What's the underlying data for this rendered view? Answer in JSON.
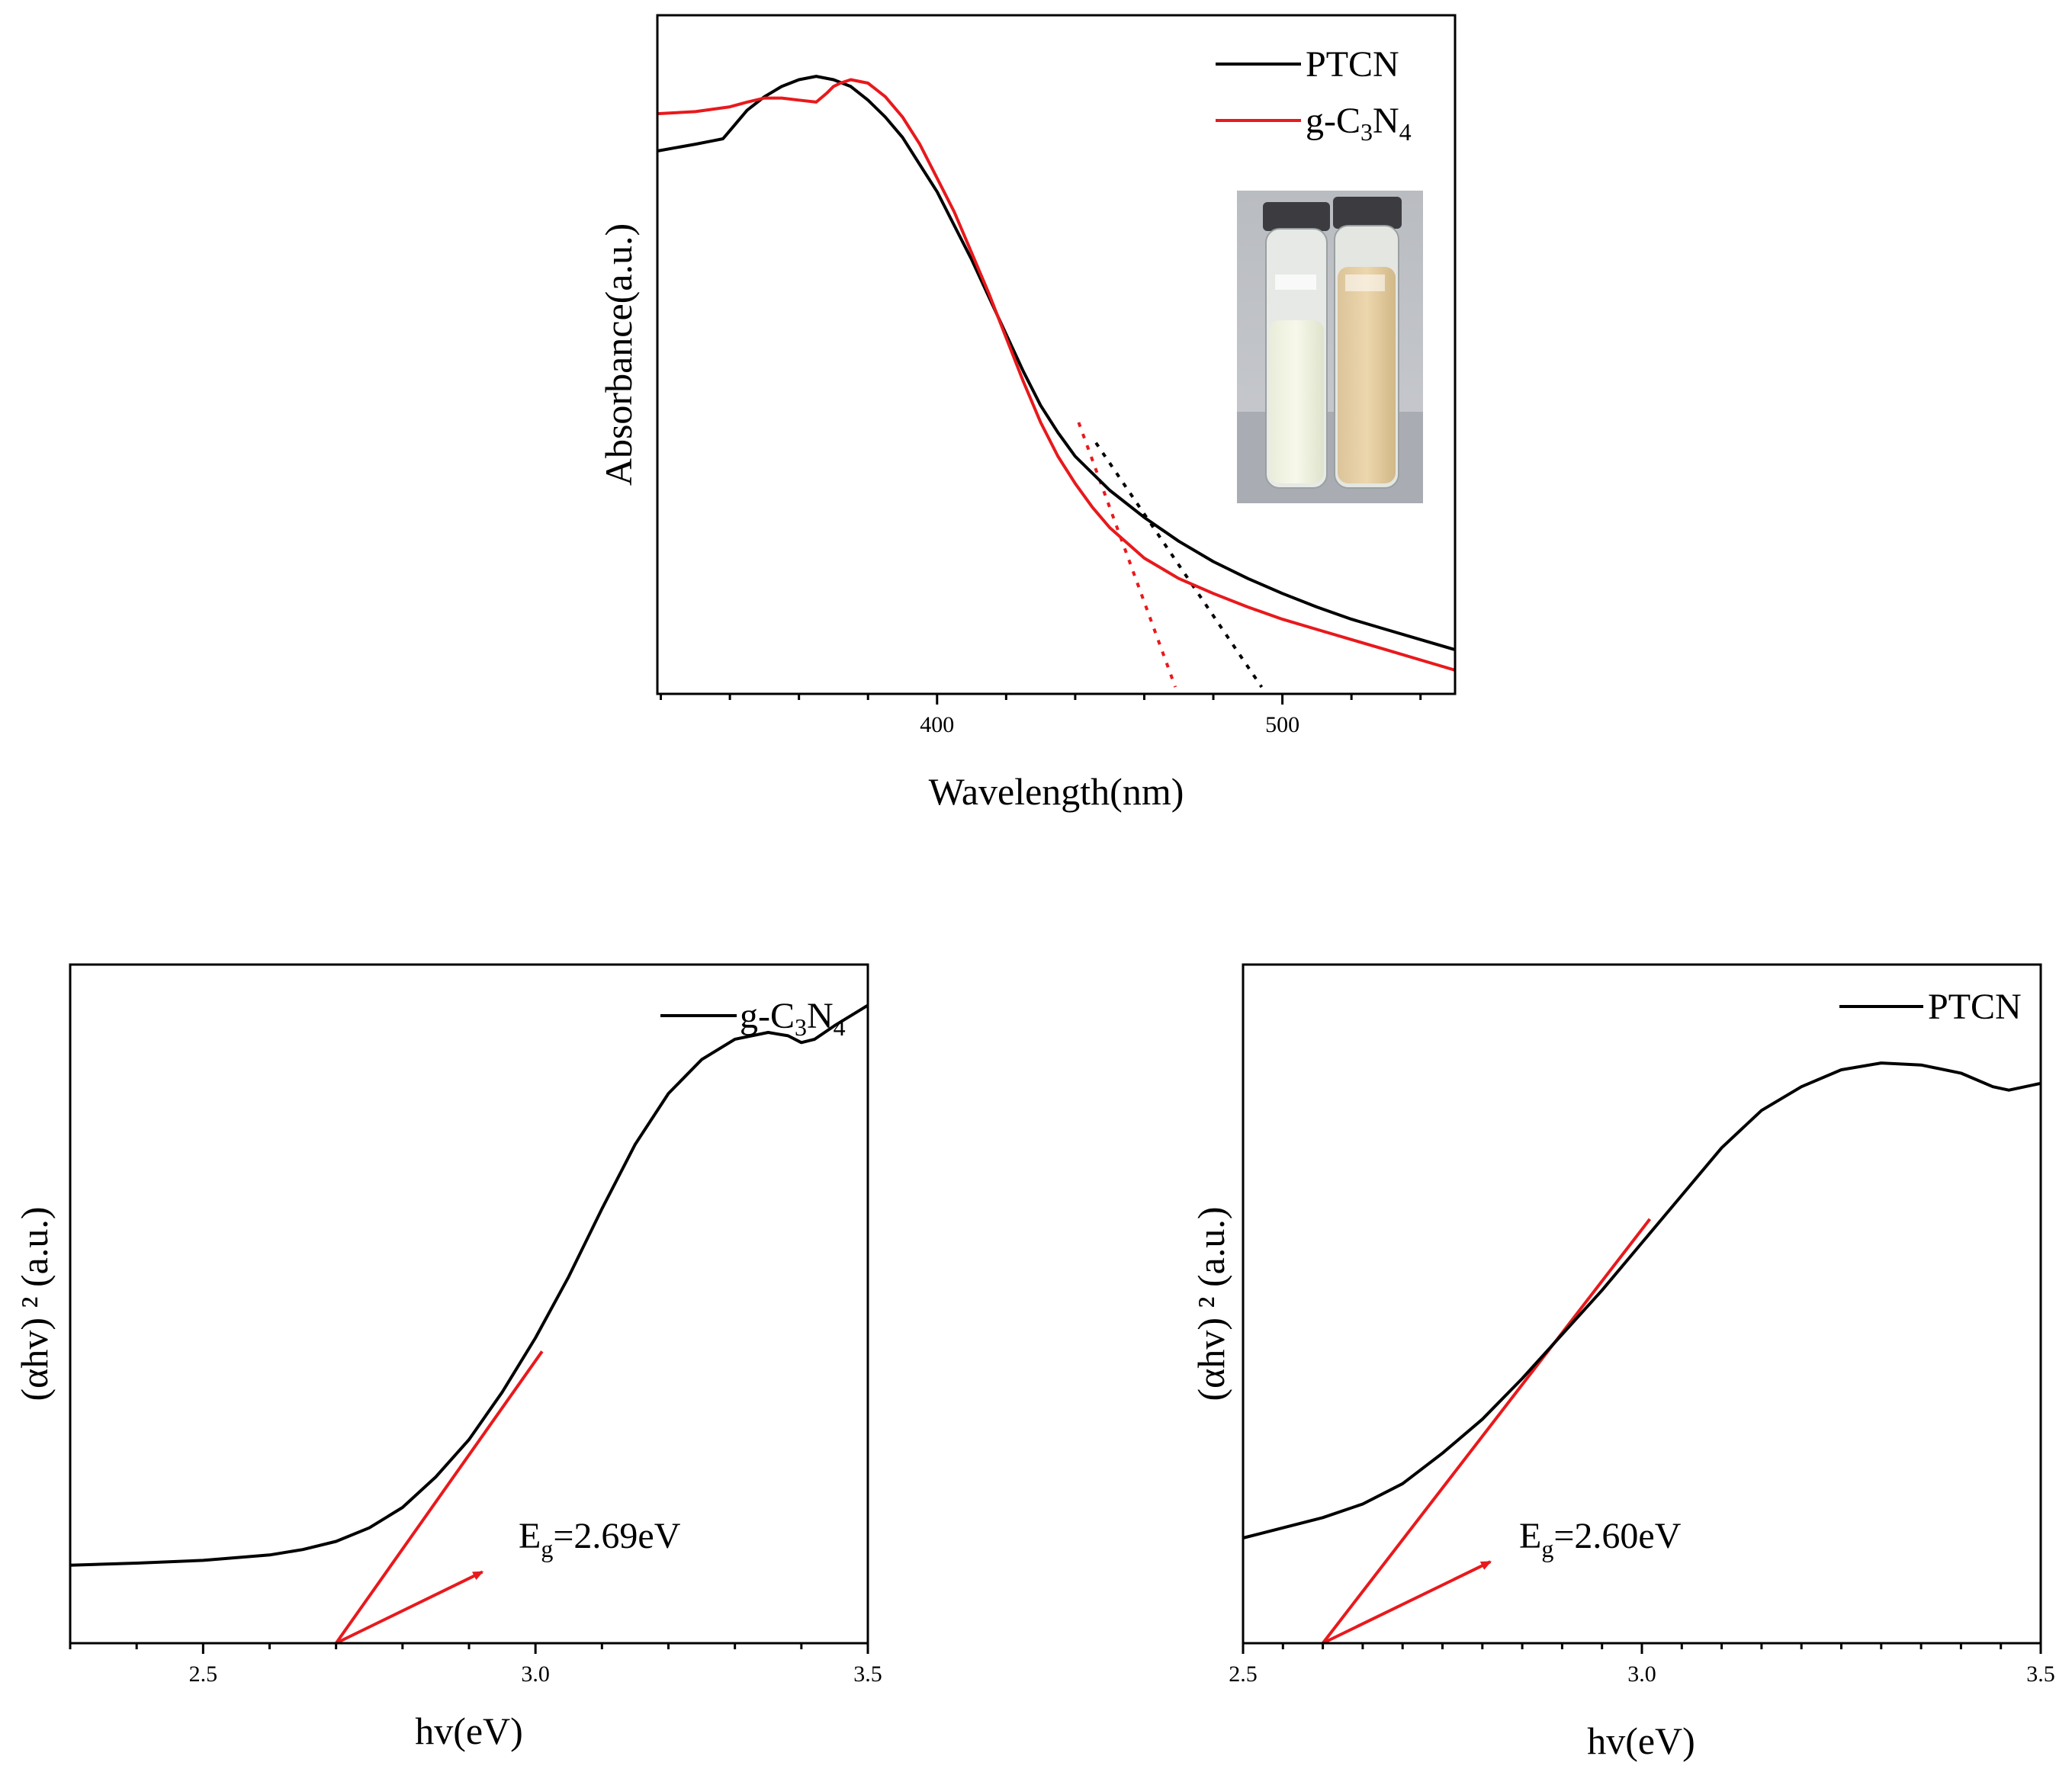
{
  "chart_data": [
    {
      "id": "absorbance",
      "type": "line",
      "xlabel": "Wavelength(nm)",
      "ylabel": "Absorbance(a.u.)",
      "xlim": [
        319,
        550
      ],
      "ylim": [
        0,
        1.0
      ],
      "xticks": [
        400,
        500
      ],
      "minor_step": 20,
      "legend": [
        {
          "label": "PTCN",
          "color": "#000000"
        },
        {
          "label_base": "g-C",
          "sub1": "3",
          "label_mid": "N",
          "sub2": "4",
          "color": "#e8191c"
        }
      ],
      "legend_position": "top-right",
      "inset_photo": "two sample vials: pale cream powder (g-C3N4) and tan powder (PTCN)",
      "series": [
        {
          "name": "PTCN",
          "color": "#000000",
          "x": [
            319,
            330,
            335,
            338,
            340,
            345,
            350,
            355,
            360,
            365,
            370,
            375,
            380,
            385,
            390,
            395,
            400,
            405,
            410,
            415,
            420,
            425,
            430,
            435,
            440,
            450,
            460,
            470,
            480,
            490,
            500,
            510,
            520,
            530,
            540,
            550
          ],
          "y": [
            0.8,
            0.81,
            0.815,
            0.818,
            0.83,
            0.86,
            0.88,
            0.895,
            0.905,
            0.91,
            0.905,
            0.895,
            0.875,
            0.85,
            0.82,
            0.78,
            0.74,
            0.69,
            0.64,
            0.585,
            0.53,
            0.475,
            0.425,
            0.385,
            0.35,
            0.3,
            0.26,
            0.225,
            0.195,
            0.17,
            0.148,
            0.128,
            0.11,
            0.095,
            0.08,
            0.065
          ]
        },
        {
          "name": "g-C3N4",
          "color": "#e8191c",
          "x": [
            319,
            330,
            340,
            345,
            350,
            355,
            360,
            365,
            368,
            370,
            372,
            375,
            380,
            385,
            390,
            395,
            400,
            405,
            410,
            415,
            420,
            425,
            430,
            435,
            440,
            445,
            450,
            460,
            470,
            480,
            490,
            500,
            510,
            520,
            530,
            540,
            550
          ],
          "y": [
            0.855,
            0.858,
            0.865,
            0.872,
            0.878,
            0.878,
            0.875,
            0.872,
            0.885,
            0.895,
            0.9,
            0.905,
            0.9,
            0.88,
            0.85,
            0.81,
            0.76,
            0.71,
            0.65,
            0.59,
            0.525,
            0.46,
            0.4,
            0.35,
            0.31,
            0.275,
            0.245,
            0.2,
            0.17,
            0.148,
            0.128,
            0.11,
            0.095,
            0.08,
            0.065,
            0.05,
            0.035
          ]
        }
      ],
      "tangents": [
        {
          "color": "#000000",
          "style": "dotted",
          "x": [
            446,
            494
          ],
          "y": [
            0.37,
            0.01
          ]
        },
        {
          "color": "#e8191c",
          "style": "dotted",
          "x": [
            441,
            469
          ],
          "y": [
            0.4,
            0.01
          ]
        }
      ]
    },
    {
      "id": "tauc-gcn",
      "type": "line",
      "xlabel": "hv(eV)",
      "ylabel": "(αhv) ² (a.u.)",
      "xlim": [
        2.3,
        3.5
      ],
      "ylim": [
        0,
        1.0
      ],
      "xticks": [
        2.5,
        3.0,
        3.5
      ],
      "xtick_labels": [
        "2.5",
        "3.0",
        "3.5"
      ],
      "minor_step": 0.1,
      "legend": [
        {
          "label_base": "g-C",
          "sub1": "3",
          "label_mid": "N",
          "sub2": "4",
          "color": "#000000"
        }
      ],
      "legend_position": "top-right",
      "series": [
        {
          "name": "g-C3N4",
          "color": "#000000",
          "x": [
            2.3,
            2.4,
            2.5,
            2.6,
            2.65,
            2.7,
            2.75,
            2.8,
            2.85,
            2.9,
            2.95,
            3.0,
            3.05,
            3.1,
            3.15,
            3.2,
            3.25,
            3.3,
            3.35,
            3.38,
            3.4,
            3.42,
            3.45,
            3.5
          ],
          "y": [
            0.115,
            0.118,
            0.122,
            0.13,
            0.138,
            0.15,
            0.17,
            0.2,
            0.245,
            0.3,
            0.37,
            0.45,
            0.54,
            0.64,
            0.735,
            0.81,
            0.86,
            0.89,
            0.9,
            0.895,
            0.885,
            0.89,
            0.91,
            0.94
          ]
        }
      ],
      "tangents": [
        {
          "color": "#e8191c",
          "style": "solid",
          "x": [
            2.7,
            3.01
          ],
          "y": [
            0.0,
            0.43
          ]
        }
      ],
      "annotation": {
        "E": "E",
        "sub": "g",
        "value": "=2.69eV",
        "x": 2.97,
        "y": 0.135
      },
      "arrow": {
        "color": "#e8191c",
        "from": [
          2.7,
          0.0
        ],
        "to": [
          2.92,
          0.105
        ]
      }
    },
    {
      "id": "tauc-ptcn",
      "type": "line",
      "xlabel": "hv(eV)",
      "ylabel": "(αhv) ² (a.u.)",
      "xlim": [
        2.5,
        3.5
      ],
      "ylim": [
        0,
        1.0
      ],
      "xticks": [
        2.5,
        3.0,
        3.5
      ],
      "xtick_labels": [
        "2.5",
        "3.0",
        "3.5"
      ],
      "minor_step": 0.05,
      "legend": [
        {
          "label": "PTCN",
          "color": "#000000"
        }
      ],
      "legend_position": "top-right",
      "series": [
        {
          "name": "PTCN",
          "color": "#000000",
          "x": [
            2.5,
            2.55,
            2.6,
            2.65,
            2.7,
            2.75,
            2.8,
            2.85,
            2.9,
            2.95,
            3.0,
            3.05,
            3.1,
            3.15,
            3.2,
            3.25,
            3.3,
            3.35,
            3.4,
            3.44,
            3.46,
            3.5
          ],
          "y": [
            0.155,
            0.17,
            0.185,
            0.205,
            0.235,
            0.28,
            0.33,
            0.39,
            0.455,
            0.52,
            0.59,
            0.66,
            0.73,
            0.785,
            0.82,
            0.845,
            0.855,
            0.852,
            0.84,
            0.82,
            0.815,
            0.825
          ]
        }
      ],
      "tangents": [
        {
          "color": "#e8191c",
          "style": "solid",
          "x": [
            2.6,
            3.01
          ],
          "y": [
            0.0,
            0.625
          ]
        }
      ],
      "annotation": {
        "E": "E",
        "sub": "g",
        "value": "=2.60eV",
        "x": 2.84,
        "y": 0.14
      },
      "arrow": {
        "color": "#e8191c",
        "from": [
          2.6,
          0.0
        ],
        "to": [
          2.81,
          0.12
        ]
      }
    }
  ]
}
